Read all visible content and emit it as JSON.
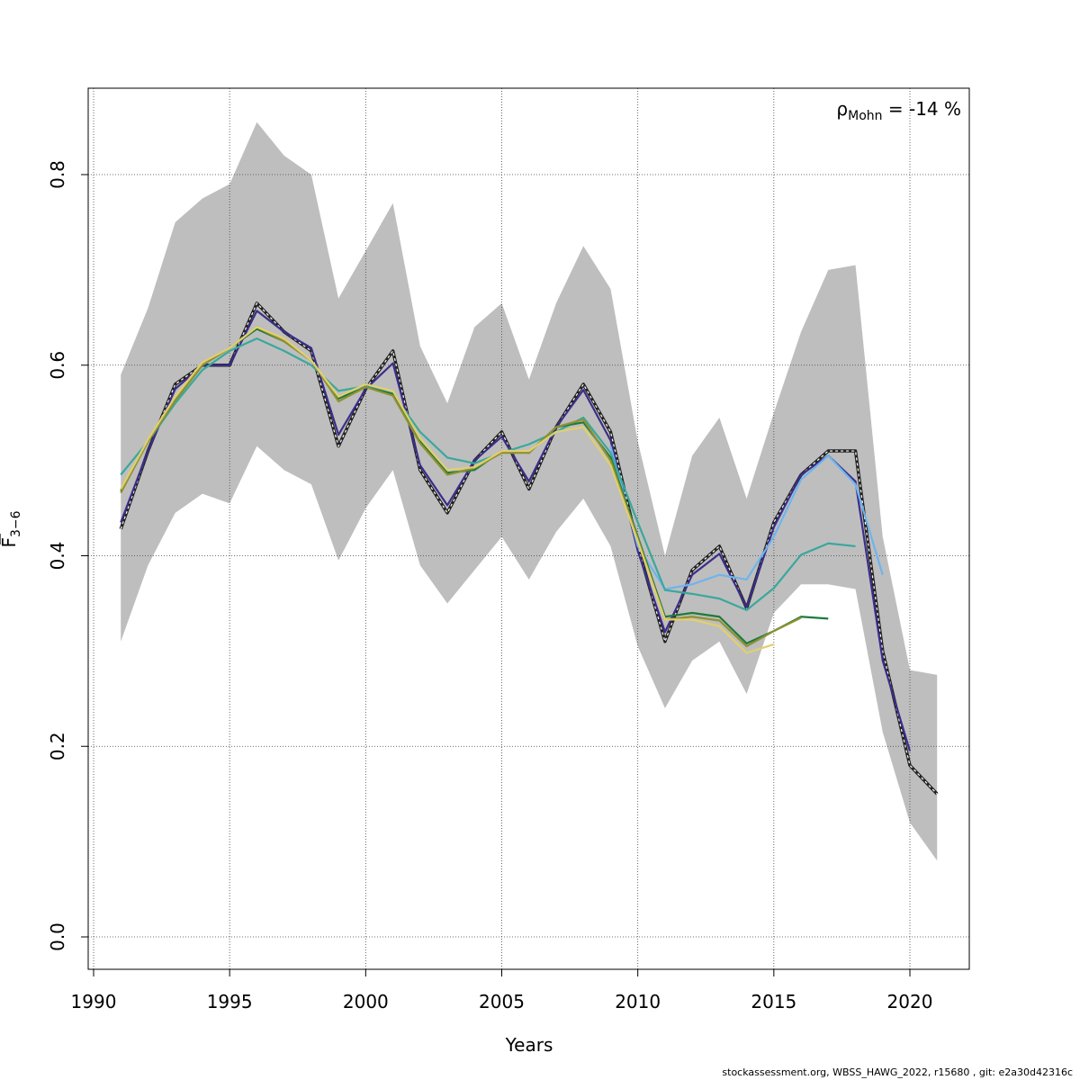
{
  "chart_data": {
    "type": "line",
    "xlabel": "Years",
    "ylabel": {
      "base": "F",
      "subscript": "3−6"
    },
    "annotation": {
      "rho": "ρ",
      "subscript": "Mohn",
      "text": " = -14 %"
    },
    "xlim": [
      1990,
      2022
    ],
    "ylim": [
      0,
      0.85
    ],
    "xticks": [
      1990,
      1995,
      2000,
      2005,
      2010,
      2015,
      2020
    ],
    "yticks": [
      0.0,
      0.2,
      0.4,
      0.6,
      0.8
    ],
    "ytick_labels": [
      "0.0",
      "0.2",
      "0.4",
      "0.6",
      "0.8"
    ],
    "grid": true,
    "ci_band": {
      "x": [
        1991,
        1992,
        1993,
        1994,
        1995,
        1996,
        1997,
        1998,
        1999,
        2000,
        2001,
        2002,
        2003,
        2004,
        2005,
        2006,
        2007,
        2008,
        2009,
        2010,
        2011,
        2012,
        2013,
        2014,
        2015,
        2016,
        2017,
        2018,
        2019,
        2020,
        2021
      ],
      "upper": [
        0.59,
        0.66,
        0.75,
        0.775,
        0.79,
        0.855,
        0.82,
        0.8,
        0.67,
        0.72,
        0.77,
        0.62,
        0.56,
        0.64,
        0.665,
        0.585,
        0.665,
        0.725,
        0.68,
        0.52,
        0.4,
        0.505,
        0.545,
        0.46,
        0.55,
        0.635,
        0.7,
        0.705,
        0.42,
        0.28,
        0.275
      ],
      "lower": [
        0.31,
        0.39,
        0.445,
        0.465,
        0.455,
        0.515,
        0.49,
        0.475,
        0.395,
        0.45,
        0.49,
        0.39,
        0.35,
        0.385,
        0.42,
        0.375,
        0.425,
        0.46,
        0.41,
        0.305,
        0.24,
        0.29,
        0.31,
        0.255,
        0.34,
        0.37,
        0.37,
        0.365,
        0.215,
        0.12,
        0.08
      ],
      "color": "#bebebe"
    },
    "series": [
      {
        "color": "#222222",
        "dashed": true,
        "x": [
          1991,
          1992,
          1993,
          1994,
          1995,
          1996,
          1997,
          1998,
          1999,
          2000,
          2001,
          2002,
          2003,
          2004,
          2005,
          2006,
          2007,
          2008,
          2009,
          2010,
          2011,
          2012,
          2013,
          2014,
          2015,
          2016,
          2017,
          2018,
          2019,
          2020,
          2021
        ],
        "values": [
          0.428,
          0.51,
          0.58,
          0.6,
          0.6,
          0.665,
          0.635,
          0.615,
          0.515,
          0.575,
          0.615,
          0.49,
          0.445,
          0.5,
          0.53,
          0.47,
          0.535,
          0.58,
          0.53,
          0.41,
          0.31,
          0.385,
          0.41,
          0.345,
          0.435,
          0.485,
          0.51,
          0.51,
          0.3,
          0.18,
          0.15
        ]
      },
      {
        "color": "#3b2d8c",
        "dashed": false,
        "x": [
          1991,
          1992,
          1993,
          1994,
          1995,
          1996,
          1997,
          1998,
          1999,
          2000,
          2001,
          2002,
          2003,
          2004,
          2005,
          2006,
          2007,
          2008,
          2009,
          2010,
          2011,
          2012,
          2013,
          2014,
          2015,
          2016,
          2017,
          2018,
          2019,
          2020
        ],
        "values": [
          0.435,
          0.51,
          0.575,
          0.6,
          0.6,
          0.657,
          0.635,
          0.618,
          0.527,
          0.575,
          0.602,
          0.495,
          0.453,
          0.5,
          0.525,
          0.478,
          0.535,
          0.574,
          0.521,
          0.405,
          0.32,
          0.38,
          0.402,
          0.346,
          0.43,
          0.485,
          0.505,
          0.478,
          0.29,
          0.195
        ]
      },
      {
        "color": "#6eb4ee",
        "dashed": false,
        "x": [
          2009,
          2010,
          2011,
          2012,
          2013,
          2014,
          2015,
          2016,
          2017,
          2018,
          2019
        ],
        "values": [
          0.515,
          0.41,
          0.365,
          0.37,
          0.38,
          0.375,
          0.42,
          0.48,
          0.505,
          0.475,
          0.38
        ]
      },
      {
        "color": "#3aa89c",
        "dashed": false,
        "x": [
          1991,
          1992,
          1993,
          1994,
          1995,
          1996,
          1997,
          1998,
          1999,
          2000,
          2001,
          2002,
          2003,
          2004,
          2005,
          2006,
          2007,
          2008,
          2009,
          2010,
          2011,
          2012,
          2013,
          2014,
          2015,
          2016,
          2017,
          2018
        ],
        "values": [
          0.485,
          0.52,
          0.56,
          0.595,
          0.615,
          0.628,
          0.615,
          0.6,
          0.573,
          0.578,
          0.57,
          0.53,
          0.503,
          0.497,
          0.508,
          0.517,
          0.53,
          0.545,
          0.508,
          0.435,
          0.364,
          0.36,
          0.355,
          0.343,
          0.366,
          0.401,
          0.413,
          0.41
        ]
      },
      {
        "color": "#1e7a3c",
        "dashed": false,
        "x": [
          1991,
          1992,
          1993,
          1994,
          1995,
          1996,
          1997,
          1998,
          1999,
          2000,
          2001,
          2002,
          2003,
          2004,
          2005,
          2006,
          2007,
          2008,
          2009,
          2010,
          2011,
          2012,
          2013,
          2014,
          2015,
          2016,
          2017
        ],
        "values": [
          0.468,
          0.52,
          0.563,
          0.6,
          0.618,
          0.638,
          0.625,
          0.605,
          0.565,
          0.577,
          0.57,
          0.52,
          0.487,
          0.49,
          0.51,
          0.508,
          0.535,
          0.54,
          0.503,
          0.42,
          0.336,
          0.34,
          0.336,
          0.308,
          0.321,
          0.336,
          0.334
        ]
      },
      {
        "color": "#8f9130",
        "dashed": false,
        "x": [
          1991,
          1992,
          1993,
          1994,
          1995,
          1996,
          1997,
          1998,
          1999,
          2000,
          2001,
          2002,
          2003,
          2004,
          2005,
          2006,
          2007,
          2008,
          2009,
          2010,
          2011,
          2012,
          2013,
          2014,
          2015,
          2016
        ],
        "values": [
          0.466,
          0.52,
          0.563,
          0.6,
          0.618,
          0.64,
          0.625,
          0.605,
          0.562,
          0.577,
          0.568,
          0.518,
          0.485,
          0.492,
          0.508,
          0.508,
          0.535,
          0.543,
          0.5,
          0.418,
          0.333,
          0.336,
          0.332,
          0.305,
          0.321,
          0.335
        ]
      },
      {
        "color": "#e2cf6d",
        "dashed": false,
        "x": [
          1991,
          1992,
          1993,
          1994,
          1995,
          1996,
          1997,
          1998,
          1999,
          2000,
          2001,
          2002,
          2003,
          2004,
          2005,
          2006,
          2007,
          2008,
          2009,
          2010,
          2011,
          2012,
          2013,
          2014,
          2015
        ],
        "values": [
          0.47,
          0.522,
          0.567,
          0.603,
          0.618,
          0.64,
          0.628,
          0.605,
          0.567,
          0.58,
          0.573,
          0.523,
          0.49,
          0.493,
          0.51,
          0.51,
          0.53,
          0.535,
          0.495,
          0.415,
          0.333,
          0.333,
          0.326,
          0.298,
          0.307
        ]
      }
    ]
  },
  "footer": "stockassessment.org, WBSS_HAWG_2022, r15680 , git: e2a30d42316c"
}
